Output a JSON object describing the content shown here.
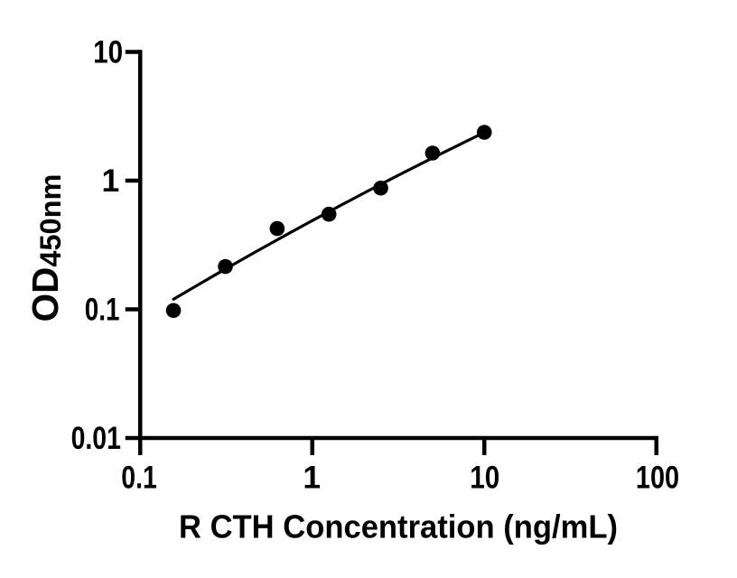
{
  "figure": {
    "background_color": "#ffffff",
    "ink_color": "#000000"
  },
  "chart_data": {
    "type": "scatter",
    "title": "",
    "xlabel": "R CTH Concentration (ng/mL)",
    "ylabel_main": "OD",
    "ylabel_subscript": "450nm",
    "x_scale": "log",
    "y_scale": "log",
    "xlim": [
      0.1,
      100
    ],
    "ylim": [
      0.01,
      10
    ],
    "x_ticks": [
      {
        "value": 0.1,
        "label": "0.1"
      },
      {
        "value": 1,
        "label": "1"
      },
      {
        "value": 10,
        "label": "10"
      },
      {
        "value": 100,
        "label": "100"
      }
    ],
    "y_ticks": [
      {
        "value": 0.01,
        "label": "0.01"
      },
      {
        "value": 0.1,
        "label": "0.1"
      },
      {
        "value": 1,
        "label": "1"
      },
      {
        "value": 10,
        "label": "10"
      }
    ],
    "series": [
      {
        "name": "standards",
        "marker": "filled-circle",
        "color": "#000000",
        "points": [
          {
            "x": 0.156,
            "y": 0.098
          },
          {
            "x": 0.3125,
            "y": 0.215
          },
          {
            "x": 0.625,
            "y": 0.424
          },
          {
            "x": 1.25,
            "y": 0.548
          },
          {
            "x": 2.5,
            "y": 0.875
          },
          {
            "x": 5,
            "y": 1.637
          },
          {
            "x": 10,
            "y": 2.374
          }
        ]
      }
    ],
    "fit_line": {
      "name": "standard-curve-fit",
      "color": "#000000",
      "points": [
        [
          0.156,
          0.1198
        ],
        [
          0.2023,
          0.1469
        ],
        [
          0.2624,
          0.1798
        ],
        [
          0.3404,
          0.2195
        ],
        [
          0.4416,
          0.2673
        ],
        [
          0.5728,
          0.3248
        ],
        [
          0.7431,
          0.3937
        ],
        [
          0.964,
          0.4761
        ],
        [
          1.2506,
          0.5744
        ],
        [
          1.6223,
          0.6913
        ],
        [
          2.1046,
          0.8301
        ],
        [
          2.7302,
          0.9944
        ],
        [
          3.5417,
          1.1884
        ],
        [
          4.5945,
          1.4169
        ],
        [
          5.9602,
          1.6853
        ],
        [
          7.7319,
          1.9998
        ],
        [
          10.0,
          2.3674
        ]
      ]
    },
    "grid": false,
    "legend": null
  }
}
